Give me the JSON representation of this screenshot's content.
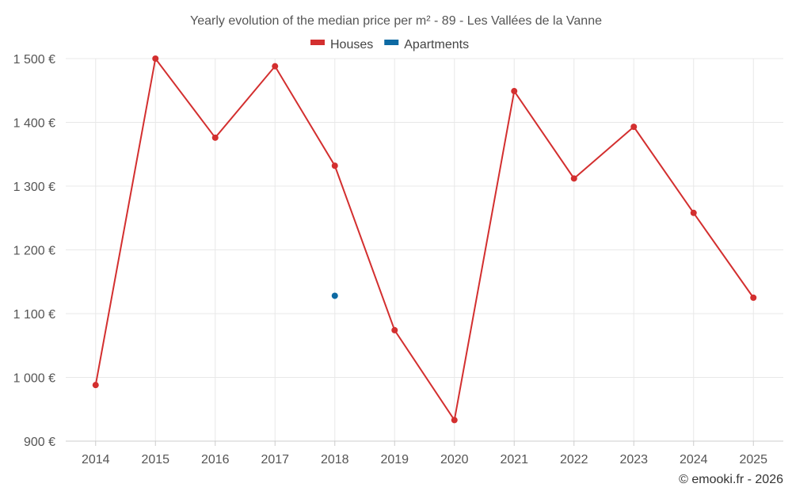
{
  "chart_data": {
    "type": "line",
    "title": "Yearly evolution of the median price per m² - 89 - Les Vallées de la Vanne",
    "categories": [
      "2014",
      "2015",
      "2016",
      "2017",
      "2018",
      "2019",
      "2020",
      "2021",
      "2022",
      "2023",
      "2024",
      "2025"
    ],
    "series": [
      {
        "name": "Houses",
        "color": "#d32f2f",
        "values": [
          988,
          1500,
          1376,
          1488,
          1332,
          1074,
          933,
          1449,
          1312,
          1393,
          1258,
          1125
        ]
      },
      {
        "name": "Apartments",
        "color": "#0d6aa3",
        "values": [
          null,
          null,
          null,
          null,
          1128,
          null,
          null,
          null,
          null,
          null,
          null,
          null
        ]
      }
    ],
    "yticks": [
      900,
      1000,
      1100,
      1200,
      1300,
      1400,
      1500
    ],
    "ytick_labels": [
      "900 €",
      "1 000 €",
      "1 100 €",
      "1 200 €",
      "1 300 €",
      "1 400 €",
      "1 500 €"
    ],
    "ylim": [
      900,
      1500
    ],
    "xlabel": "",
    "ylabel": "",
    "legend_position": "top-center",
    "grid": true
  },
  "credit": "© emooki.fr - 2026"
}
